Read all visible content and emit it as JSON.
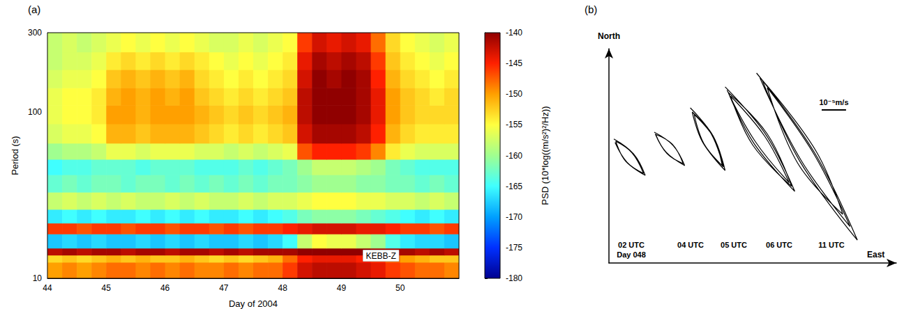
{
  "chart_data": [
    {
      "type": "heatmap",
      "title": "(a)",
      "xlabel": "Day of 2004",
      "ylabel": "Period (s)",
      "annotation": "KEBB-Z",
      "log": "y",
      "grid": false,
      "xlim": [
        44,
        51
      ],
      "xticks": [
        44,
        45,
        46,
        47,
        48,
        49,
        50
      ],
      "ylim": [
        10,
        300
      ],
      "yticks": [
        10,
        100,
        300
      ],
      "day_edges": [
        44,
        44.25,
        44.5,
        44.75,
        45,
        45.25,
        45.5,
        45.75,
        46,
        46.25,
        46.5,
        46.75,
        47,
        47.25,
        47.5,
        47.75,
        48,
        48.25,
        48.5,
        48.75,
        49,
        49.25,
        49.5,
        49.75,
        50,
        50.25,
        50.5,
        50.75,
        51
      ],
      "period_edges": [
        10,
        12.5,
        13.8,
        15.2,
        18.5,
        21.5,
        26,
        33,
        42,
        52,
        65,
        85,
        110,
        140,
        180,
        230,
        300
      ],
      "psd": [
        [
          -150,
          -149,
          -150,
          -149,
          -148,
          -148,
          -149,
          -148,
          -149,
          -148,
          -149,
          -149,
          -148,
          -149,
          -148,
          -148,
          -146,
          -143,
          -142,
          -142,
          -142,
          -143,
          -144,
          -146,
          -147,
          -148,
          -148,
          -149
        ],
        [
          -153,
          -152,
          -153,
          -152,
          -151,
          -152,
          -151,
          -152,
          -152,
          -151,
          -152,
          -153,
          -152,
          -153,
          -152,
          -151,
          -148,
          -145,
          -144,
          -144,
          -144,
          -145,
          -146,
          -148,
          -150,
          -151,
          -152,
          -152
        ],
        [
          -142,
          -141,
          -142,
          -141,
          -141,
          -142,
          -141,
          -141,
          -142,
          -141,
          -141,
          -142,
          -141,
          -142,
          -141,
          -141,
          -141,
          -140,
          -140,
          -140,
          -140,
          -140,
          -141,
          -141,
          -141,
          -142,
          -141,
          -142
        ],
        [
          -168,
          -167,
          -168,
          -167,
          -168,
          -168,
          -167,
          -168,
          -167,
          -168,
          -167,
          -168,
          -168,
          -167,
          -168,
          -167,
          -165,
          -158,
          -155,
          -156,
          -156,
          -158,
          -160,
          -164,
          -166,
          -167,
          -167,
          -168
        ],
        [
          -146,
          -146,
          -147,
          -146,
          -146,
          -147,
          -146,
          -146,
          -147,
          -146,
          -146,
          -147,
          -146,
          -147,
          -146,
          -146,
          -145,
          -144,
          -143,
          -143,
          -143,
          -144,
          -144,
          -145,
          -146,
          -146,
          -147,
          -146
        ],
        [
          -166,
          -165,
          -166,
          -165,
          -166,
          -166,
          -165,
          -166,
          -165,
          -166,
          -165,
          -166,
          -166,
          -165,
          -166,
          -165,
          -164,
          -162,
          -161,
          -161,
          -161,
          -162,
          -163,
          -164,
          -165,
          -166,
          -165,
          -166
        ],
        [
          -158,
          -157,
          -158,
          -157,
          -158,
          -157,
          -158,
          -158,
          -157,
          -158,
          -157,
          -158,
          -158,
          -157,
          -158,
          -157,
          -157,
          -156,
          -155,
          -155,
          -155,
          -156,
          -156,
          -157,
          -157,
          -158,
          -157,
          -158
        ],
        [
          -163,
          -162,
          -163,
          -162,
          -162,
          -163,
          -162,
          -162,
          -163,
          -162,
          -163,
          -162,
          -163,
          -162,
          -163,
          -162,
          -162,
          -161,
          -160,
          -160,
          -160,
          -161,
          -161,
          -162,
          -162,
          -163,
          -162,
          -163
        ],
        [
          -165,
          -164,
          -164,
          -163,
          -163,
          -163,
          -164,
          -163,
          -163,
          -163,
          -164,
          -164,
          -164,
          -163,
          -164,
          -163,
          -162,
          -160,
          -158,
          -158,
          -158,
          -159,
          -160,
          -162,
          -163,
          -164,
          -164,
          -164
        ],
        [
          -160,
          -159,
          -159,
          -158,
          -156,
          -156,
          -157,
          -156,
          -156,
          -156,
          -157,
          -157,
          -158,
          -157,
          -158,
          -157,
          -156,
          -147,
          -145,
          -145,
          -145,
          -146,
          -149,
          -154,
          -156,
          -157,
          -157,
          -157
        ],
        [
          -157,
          -156,
          -156,
          -155,
          -151,
          -151,
          -152,
          -151,
          -151,
          -151,
          -152,
          -153,
          -154,
          -153,
          -154,
          -153,
          -152,
          -143,
          -141,
          -141,
          -141,
          -142,
          -145,
          -151,
          -153,
          -154,
          -154,
          -154
        ],
        [
          -156,
          -155,
          -155,
          -154,
          -150,
          -150,
          -151,
          -150,
          -150,
          -150,
          -151,
          -152,
          -153,
          -152,
          -153,
          -152,
          -151,
          -142,
          -140,
          -140,
          -140,
          -141,
          -144,
          -150,
          -152,
          -153,
          -153,
          -153
        ],
        [
          -156,
          -155,
          -155,
          -154,
          -151,
          -150,
          -151,
          -150,
          -151,
          -150,
          -152,
          -153,
          -154,
          -153,
          -154,
          -153,
          -152,
          -142,
          -140,
          -140,
          -140,
          -141,
          -144,
          -150,
          -152,
          -153,
          -154,
          -153
        ],
        [
          -157,
          -156,
          -156,
          -155,
          -152,
          -151,
          -152,
          -151,
          -152,
          -151,
          -153,
          -154,
          -155,
          -154,
          -155,
          -154,
          -153,
          -143,
          -140,
          -141,
          -140,
          -141,
          -145,
          -151,
          -153,
          -154,
          -155,
          -154
        ],
        [
          -158,
          -157,
          -157,
          -156,
          -154,
          -153,
          -154,
          -153,
          -154,
          -153,
          -154,
          -155,
          -156,
          -155,
          -156,
          -155,
          -154,
          -144,
          -141,
          -142,
          -141,
          -142,
          -146,
          -152,
          -154,
          -155,
          -156,
          -155
        ],
        [
          -158,
          -157,
          -158,
          -157,
          -156,
          -155,
          -156,
          -155,
          -156,
          -155,
          -156,
          -157,
          -157,
          -156,
          -157,
          -156,
          -155,
          -146,
          -143,
          -144,
          -143,
          -144,
          -148,
          -153,
          -155,
          -156,
          -157,
          -156
        ]
      ],
      "colorbar": {
        "label": "PSD (10*log((m/s²)²/Hz))",
        "lim": [
          -180,
          -140
        ],
        "ticks": [
          -140,
          -145,
          -150,
          -155,
          -160,
          -165,
          -170,
          -175,
          -180
        ]
      }
    },
    {
      "type": "line",
      "title": "(b)",
      "xlabel": "East",
      "ylabel": "North",
      "annotation": "Day 048",
      "tick_labels": false,
      "grid": false,
      "xlim": [
        0,
        11.8
      ],
      "ylim": [
        0,
        8.8
      ],
      "scale_bar": {
        "label": "10⁻⁵m/s",
        "length": 1
      },
      "series": [
        {
          "name": "02 UTC",
          "color": "#000000",
          "values": [
            [
              0.2,
              5.09
            ],
            [
              1.01,
              4.48
            ],
            [
              1.49,
              3.6
            ],
            [
              0.67,
              4.2
            ],
            [
              0.28,
              5.0
            ],
            [
              0.95,
              4.52
            ],
            [
              1.42,
              3.68
            ],
            [
              0.74,
              4.14
            ],
            [
              0.25,
              4.95
            ]
          ]
        },
        {
          "name": "04 UTC",
          "color": "#000000",
          "values": [
            [
              1.86,
              5.37
            ],
            [
              2.64,
              4.82
            ],
            [
              3.11,
              4.0
            ],
            [
              2.34,
              4.56
            ],
            [
              1.92,
              5.28
            ],
            [
              2.6,
              4.88
            ],
            [
              3.05,
              4.08
            ],
            [
              2.38,
              4.5
            ],
            [
              1.9,
              5.3
            ]
          ]
        },
        {
          "name": "05 UTC",
          "color": "#000000",
          "values": [
            [
              3.34,
              6.37
            ],
            [
              4.28,
              5.21
            ],
            [
              4.77,
              3.8
            ],
            [
              3.84,
              4.97
            ],
            [
              3.42,
              6.2
            ],
            [
              4.2,
              5.3
            ],
            [
              4.7,
              3.95
            ],
            [
              3.9,
              4.9
            ],
            [
              3.5,
              6.1
            ],
            [
              4.3,
              5.15
            ],
            [
              4.65,
              4.0
            ]
          ]
        },
        {
          "name": "06 UTC",
          "color": "#000000",
          "values": [
            [
              4.77,
              7.23
            ],
            [
              6.45,
              5.26
            ],
            [
              7.63,
              2.94
            ],
            [
              5.95,
              4.92
            ],
            [
              4.9,
              7.0
            ],
            [
              6.5,
              5.3
            ],
            [
              7.5,
              3.15
            ],
            [
              5.9,
              4.85
            ],
            [
              5.0,
              6.85
            ],
            [
              6.4,
              5.2
            ],
            [
              7.4,
              3.3
            ],
            [
              6.0,
              5.0
            ],
            [
              4.85,
              7.1
            ]
          ]
        },
        {
          "name": "11 UTC",
          "color": "#000000",
          "values": [
            [
              6.06,
              7.8
            ],
            [
              8.43,
              4.55
            ],
            [
              10.2,
              0.94
            ],
            [
              7.83,
              4.19
            ],
            [
              6.3,
              7.5
            ],
            [
              8.5,
              4.6
            ],
            [
              9.6,
              2.0
            ],
            [
              7.75,
              4.1
            ],
            [
              6.5,
              7.2
            ],
            [
              8.4,
              4.5
            ],
            [
              9.9,
              1.5
            ],
            [
              7.9,
              4.2
            ],
            [
              6.2,
              7.6
            ]
          ]
        }
      ]
    }
  ]
}
